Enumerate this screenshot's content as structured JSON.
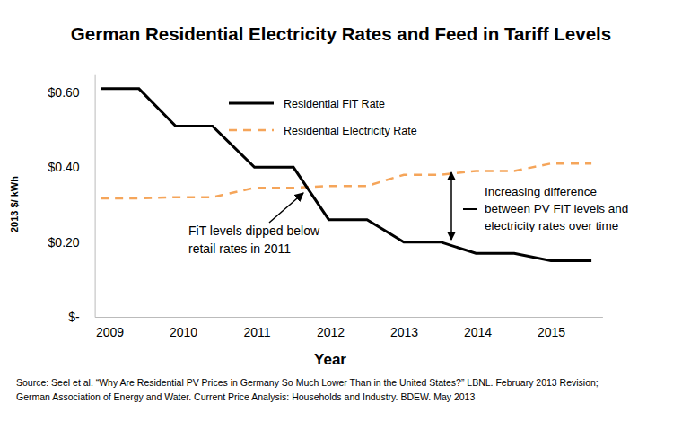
{
  "chart_data": {
    "type": "line",
    "title": "German Residential Electricity Rates and Feed in Tariff Levels",
    "x_label": "Year",
    "y_label": "2013 $/ kWh",
    "x": [
      2008.88,
      2009.4,
      2009.9,
      2010.4,
      2010.97,
      2011.5,
      2011.98,
      2012.5,
      2013.0,
      2013.5,
      2013.98,
      2014.5,
      2015.0,
      2015.55
    ],
    "xlim": [
      2008.8,
      2015.7
    ],
    "xticks": [
      2009,
      2010,
      2011,
      2012,
      2013,
      2014,
      2015
    ],
    "ylim": [
      0,
      0.65
    ],
    "yticks": [
      {
        "value": 0,
        "label": "$-"
      },
      {
        "value": 0.2,
        "label": "$0.20"
      },
      {
        "value": 0.4,
        "label": "$0.40"
      },
      {
        "value": 0.6,
        "label": "$0.60"
      }
    ],
    "series": [
      {
        "name": "Residential FiT Rate",
        "color": "#000000",
        "line_style": "solid",
        "values": [
          0.61,
          0.61,
          0.51,
          0.51,
          0.4,
          0.4,
          0.26,
          0.26,
          0.2,
          0.2,
          0.17,
          0.17,
          0.15,
          0.15
        ]
      },
      {
        "name": "Residential Electricity Rate",
        "color": "#f5a55a",
        "line_style": "dashed",
        "values": [
          0.317,
          0.317,
          0.32,
          0.32,
          0.345,
          0.345,
          0.35,
          0.35,
          0.38,
          0.38,
          0.39,
          0.39,
          0.41,
          0.41
        ]
      }
    ],
    "legend": "top",
    "grid": false,
    "annotations": [
      {
        "lines": [
          "FiT levels dipped below",
          "retail rates in 2011"
        ]
      },
      {
        "lines": [
          "Increasing difference",
          "between PV FiT levels and",
          "electricity rates over time"
        ]
      }
    ],
    "source": [
      "Source: Seel et al. “Why Are Residential PV Prices in Germany So Much Lower Than in the United States?” LBNL. February 2013 Revision;",
      "German Association of Energy and Water. Current Price Analysis: Households and Industry. BDEW. May 2013"
    ]
  }
}
